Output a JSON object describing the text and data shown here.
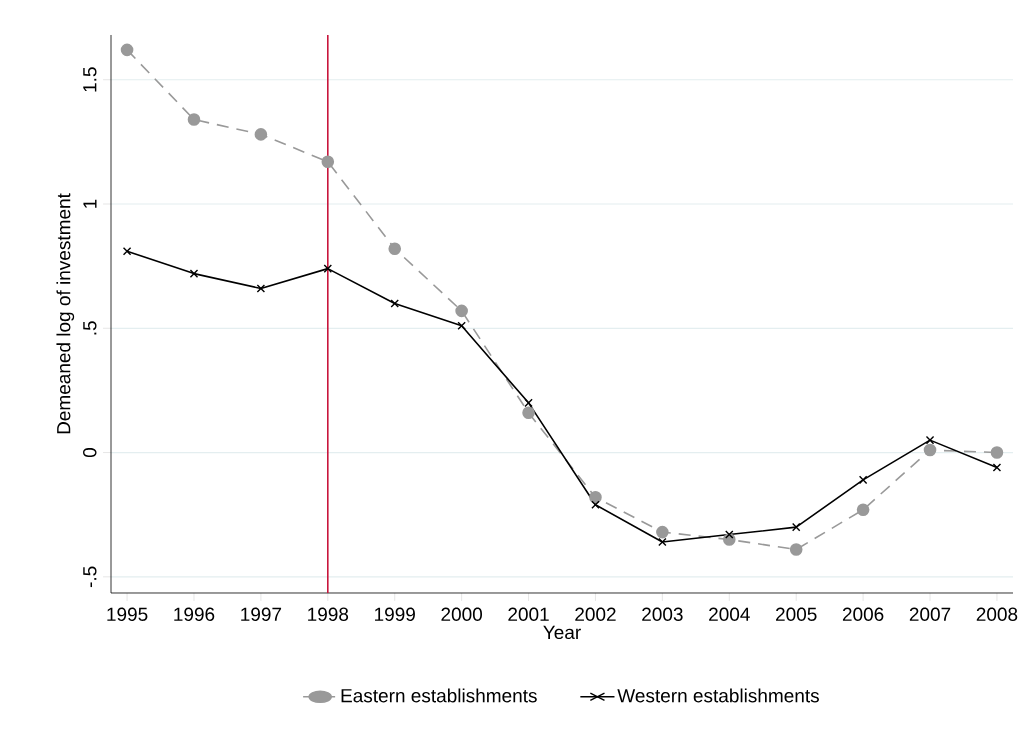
{
  "chart_data": {
    "type": "line",
    "xlabel": "Year",
    "ylabel": "Demeaned log of investment",
    "x": [
      1995,
      1996,
      1997,
      1998,
      1999,
      2000,
      2001,
      2002,
      2003,
      2004,
      2005,
      2006,
      2007,
      2008
    ],
    "series": [
      {
        "name": "Eastern establishments",
        "color": "#999999",
        "marker": "circle",
        "line_style": "dashed",
        "values": [
          1.62,
          1.34,
          1.28,
          1.17,
          0.82,
          0.57,
          0.16,
          -0.18,
          -0.32,
          -0.35,
          -0.39,
          -0.23,
          0.01,
          0.0
        ]
      },
      {
        "name": "Western establishments",
        "color": "#000000",
        "marker": "cross",
        "line_style": "solid",
        "values": [
          0.81,
          0.72,
          0.66,
          0.74,
          0.6,
          0.51,
          0.2,
          -0.21,
          -0.36,
          -0.33,
          -0.3,
          -0.11,
          0.05,
          -0.06
        ]
      }
    ],
    "xlim": [
      1994.76,
      2008.24
    ],
    "ylim": [
      -0.565,
      1.68
    ],
    "xticks": [
      1995,
      1996,
      1997,
      1998,
      1999,
      2000,
      2001,
      2002,
      2003,
      2004,
      2005,
      2006,
      2007,
      2008
    ],
    "yticks": [
      {
        "value": -0.5,
        "label": "-.5"
      },
      0,
      {
        "value": 0.5,
        "label": ".5"
      },
      1,
      1.5
    ],
    "ref_lines": [
      {
        "axis": "x",
        "value": 1998,
        "color": "#c8163c"
      }
    ],
    "grid": "y",
    "legend": "bottom"
  }
}
